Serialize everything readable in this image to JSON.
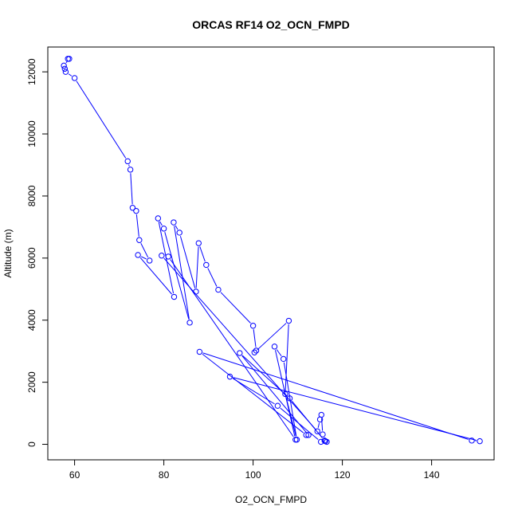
{
  "chart_data": {
    "type": "line",
    "title": "ORCAS RF14 O2_OCN_FMPD",
    "xlabel": "O2_OCN_FMPD",
    "ylabel": "Altitude (m)",
    "xlim": [
      54,
      154
    ],
    "ylim": [
      -500,
      12800
    ],
    "xticks": [
      60,
      80,
      100,
      120,
      140
    ],
    "yticks": [
      0,
      2000,
      4000,
      6000,
      8000,
      10000,
      12000
    ],
    "line_color": "#0000ff",
    "marker": "open-circle",
    "grid": false,
    "series": [
      {
        "points": [
          [
            58.5,
            12420
          ],
          [
            58.8,
            12420
          ],
          [
            57.6,
            12200
          ],
          [
            57.8,
            12100
          ],
          [
            58.0,
            12000
          ],
          [
            60.0,
            11800
          ],
          [
            71.9,
            9120
          ],
          [
            72.5,
            8850
          ],
          [
            73.0,
            7620
          ],
          [
            73.8,
            7520
          ],
          [
            74.5,
            6580
          ],
          [
            76.8,
            5920
          ],
          [
            74.2,
            6100
          ],
          [
            82.3,
            4750
          ],
          [
            78.7,
            7280
          ],
          [
            80.0,
            6950
          ],
          [
            85.8,
            3920
          ],
          [
            82.2,
            7150
          ],
          [
            83.5,
            6820
          ],
          [
            87.2,
            4920
          ],
          [
            87.8,
            6480
          ],
          [
            89.5,
            5780
          ],
          [
            92.2,
            4980
          ],
          [
            100.0,
            3820
          ],
          [
            100.7,
            3020
          ],
          [
            100.3,
            2960
          ],
          [
            108.0,
            3980
          ],
          [
            107.2,
            1620
          ],
          [
            109.8,
            150
          ],
          [
            106.8,
            2750
          ],
          [
            104.8,
            3150
          ],
          [
            109.5,
            150
          ],
          [
            81.0,
            6050
          ],
          [
            79.5,
            6080
          ],
          [
            114.4,
            420
          ],
          [
            115.0,
            800
          ],
          [
            115.3,
            950
          ],
          [
            115.6,
            320
          ],
          [
            116.5,
            80
          ],
          [
            116.0,
            120
          ],
          [
            108.2,
            1480
          ],
          [
            97.0,
            2940
          ],
          [
            112.4,
            300
          ],
          [
            111.9,
            300
          ],
          [
            88.0,
            2980
          ],
          [
            149.0,
            120
          ],
          [
            150.8,
            100
          ],
          [
            94.8,
            2180
          ],
          [
            105.5,
            1240
          ],
          [
            115.2,
            80
          ],
          [
            116.2,
            100
          ]
        ]
      }
    ]
  }
}
